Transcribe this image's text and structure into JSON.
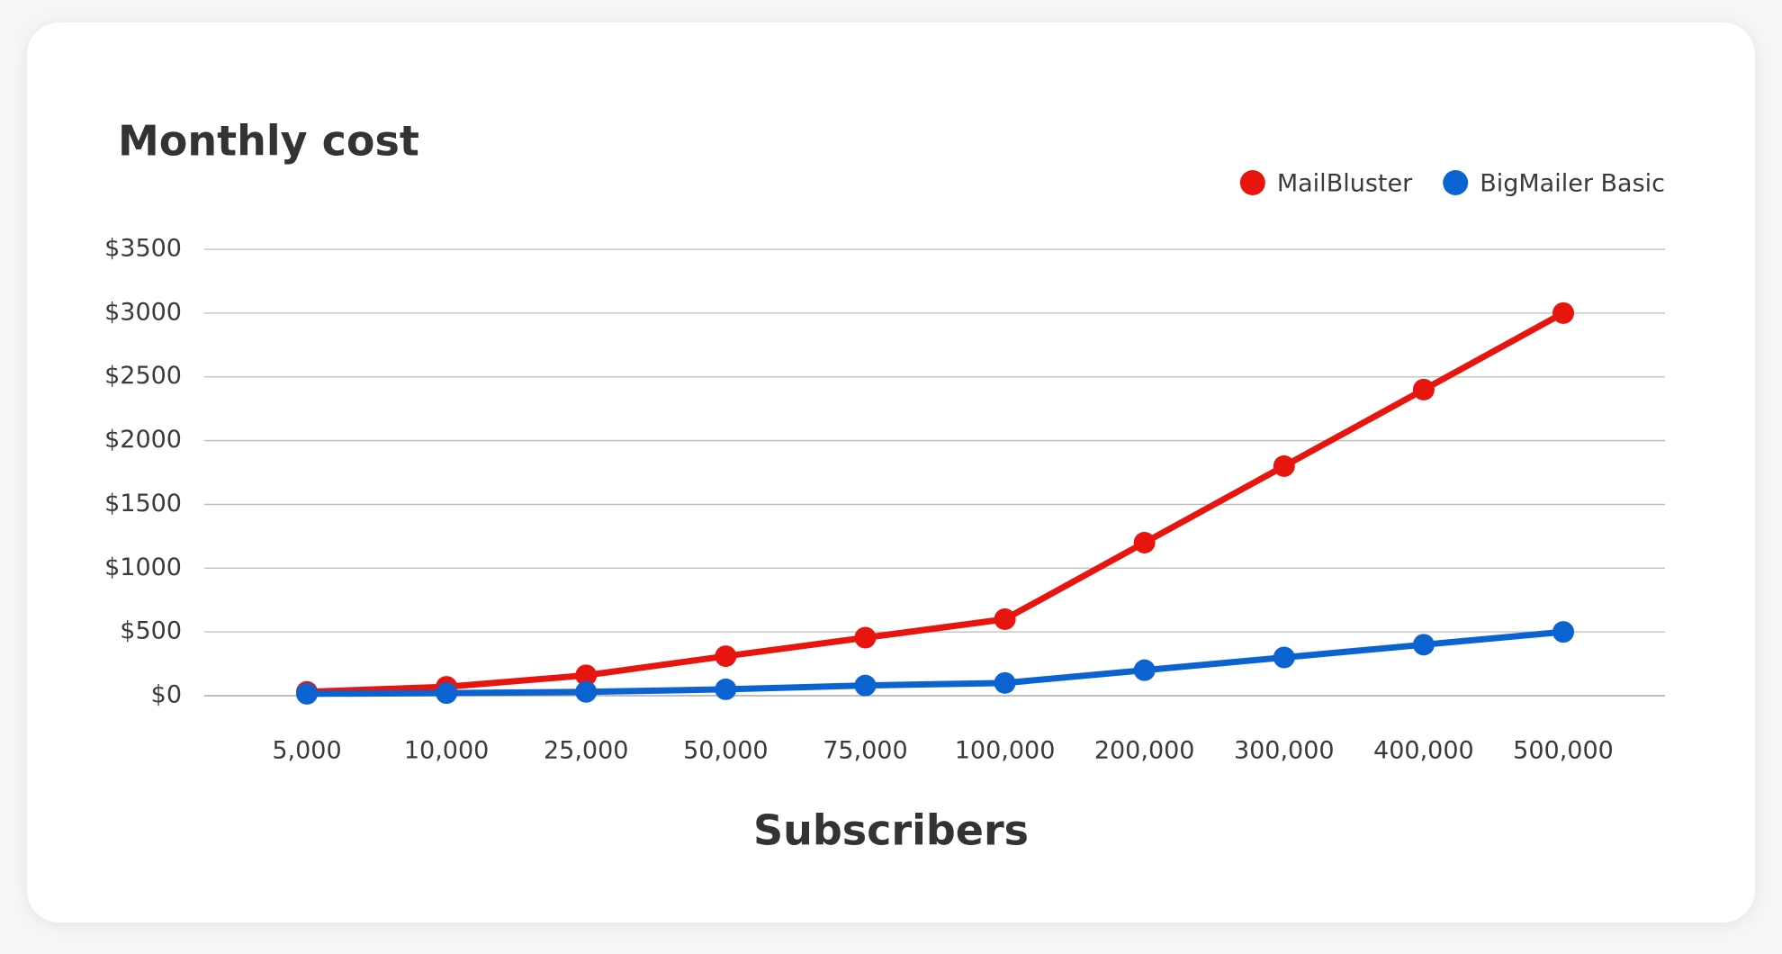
{
  "chart_data": {
    "type": "line",
    "title": "Monthly cost",
    "x_label": "Subscribers",
    "categories": [
      "5,000",
      "10,000",
      "25,000",
      "50,000",
      "75,000",
      "100,000",
      "200,000",
      "300,000",
      "400,000",
      "500,000"
    ],
    "series": [
      {
        "name": "MailBluster",
        "color": "#e8150f",
        "values": [
          30,
          70,
          160,
          310,
          455,
          600,
          1200,
          1800,
          2400,
          3000
        ]
      },
      {
        "name": "BigMailer Basic",
        "color": "#0a63d1",
        "values": [
          15,
          20,
          30,
          50,
          80,
          100,
          200,
          300,
          400,
          500
        ]
      }
    ],
    "ylim": [
      0,
      3500
    ],
    "yticks": [
      {
        "value": 0,
        "label": "$0"
      },
      {
        "value": 500,
        "label": "$500"
      },
      {
        "value": 1000,
        "label": "$1000"
      },
      {
        "value": 1500,
        "label": "$1500"
      },
      {
        "value": 2000,
        "label": "$2000"
      },
      {
        "value": 2500,
        "label": "$2500"
      },
      {
        "value": 3000,
        "label": "$3000"
      },
      {
        "value": 3500,
        "label": "$3500"
      }
    ],
    "grid": true,
    "legend": "top-right"
  }
}
